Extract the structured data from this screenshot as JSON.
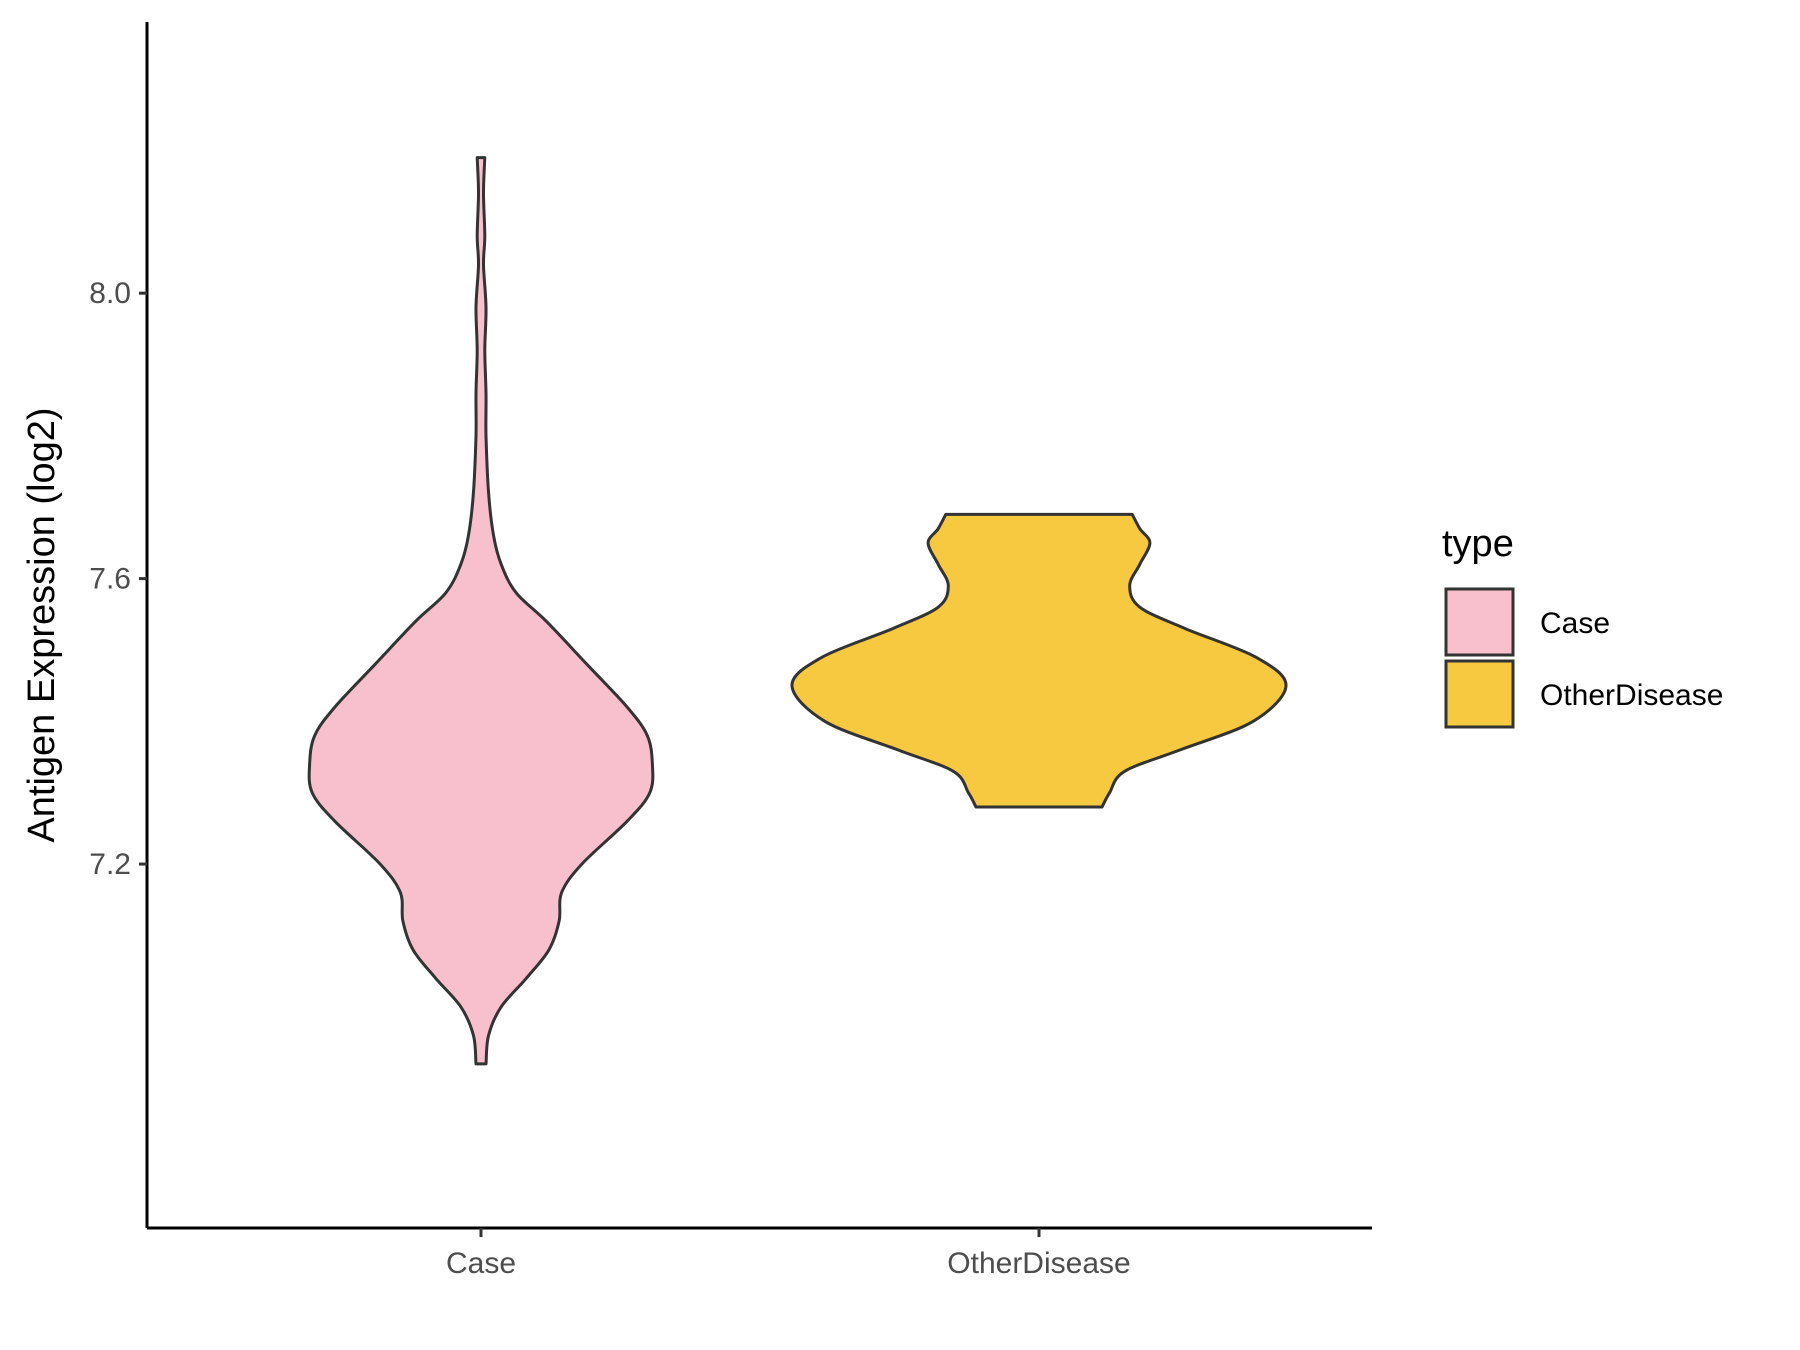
{
  "chart_data": {
    "type": "violin",
    "ylabel": "Antigen Expression (log2)",
    "xlabel": "",
    "ylim": [
      6.69,
      8.38
    ],
    "y_ticks": [
      7.2,
      7.6,
      8.0
    ],
    "y_tick_labels": [
      "7.2",
      "7.6",
      "8.0"
    ],
    "categories": [
      "Case",
      "OtherDisease"
    ],
    "legend": {
      "title": "type",
      "position": "right",
      "entries": [
        {
          "label": "Case",
          "color": "#F8C0CC"
        },
        {
          "label": "OtherDisease",
          "color": "#F7C940"
        }
      ]
    },
    "series": [
      {
        "category": "Case",
        "color": "#F8C0CC",
        "min": 6.92,
        "max": 8.19,
        "density": [
          [
            6.92,
            0.02
          ],
          [
            6.96,
            0.03
          ],
          [
            7.0,
            0.08
          ],
          [
            7.04,
            0.18
          ],
          [
            7.08,
            0.27
          ],
          [
            7.12,
            0.31
          ],
          [
            7.16,
            0.32
          ],
          [
            7.2,
            0.4
          ],
          [
            7.26,
            0.58
          ],
          [
            7.3,
            0.67
          ],
          [
            7.34,
            0.68
          ],
          [
            7.38,
            0.66
          ],
          [
            7.42,
            0.58
          ],
          [
            7.48,
            0.42
          ],
          [
            7.54,
            0.26
          ],
          [
            7.58,
            0.14
          ],
          [
            7.62,
            0.08
          ],
          [
            7.66,
            0.05
          ],
          [
            7.72,
            0.03
          ],
          [
            7.8,
            0.02
          ],
          [
            7.86,
            0.02
          ],
          [
            7.92,
            0.015
          ],
          [
            7.98,
            0.02
          ],
          [
            8.04,
            0.01
          ],
          [
            8.08,
            0.015
          ],
          [
            8.14,
            0.01
          ],
          [
            8.19,
            0.015
          ]
        ]
      },
      {
        "category": "OtherDisease",
        "color": "#F7C940",
        "min": 7.28,
        "max": 7.69,
        "density": [
          [
            7.28,
            0.25
          ],
          [
            7.3,
            0.28
          ],
          [
            7.33,
            0.34
          ],
          [
            7.36,
            0.56
          ],
          [
            7.4,
            0.85
          ],
          [
            7.45,
            0.98
          ],
          [
            7.49,
            0.86
          ],
          [
            7.53,
            0.58
          ],
          [
            7.56,
            0.4
          ],
          [
            7.59,
            0.36
          ],
          [
            7.62,
            0.4
          ],
          [
            7.65,
            0.44
          ],
          [
            7.67,
            0.4
          ],
          [
            7.69,
            0.37
          ]
        ]
      }
    ]
  }
}
